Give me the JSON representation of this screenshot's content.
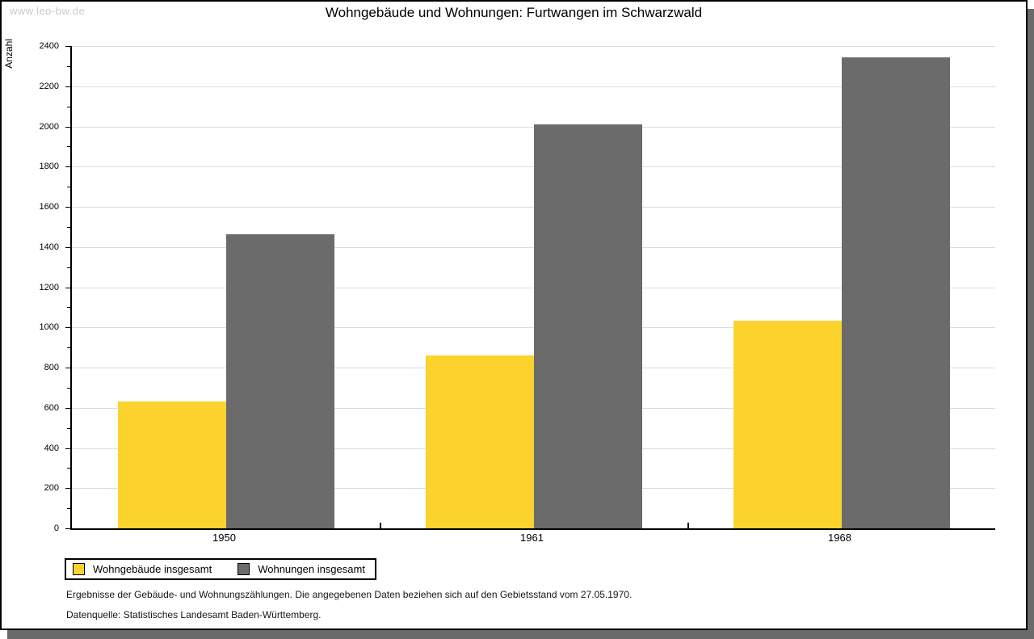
{
  "page": {
    "watermark": "www.leo-bw.de",
    "footer_line1": "Ergebnisse der Gebäude- und Wohnungszählungen. Die angegebenen Daten beziehen sich auf den Gebietsstand vom 27.05.1970.",
    "footer_line2": "Datenquelle: Statistisches Landesamt Baden-Württemberg."
  },
  "chart_data": {
    "type": "bar",
    "title": "Wohngebäude und Wohnungen: Furtwangen im Schwarzwald",
    "xlabel": "",
    "ylabel": "Anzahl",
    "categories": [
      "1950",
      "1961",
      "1968"
    ],
    "series": [
      {
        "name": "Wohngebäude insgesamt",
        "color": "#fcd22d",
        "values": [
          630,
          860,
          1035
        ]
      },
      {
        "name": "Wohnungen insgesamt",
        "color": "#6b6b6b",
        "values": [
          1465,
          2010,
          2345
        ]
      }
    ],
    "ylim": [
      0,
      2400
    ],
    "ytick_step": 200,
    "yminor_step": 100,
    "grid": true,
    "grid_color": "#dcdcdc",
    "axis_color": "#000000",
    "legend_position": "bottom-left"
  }
}
